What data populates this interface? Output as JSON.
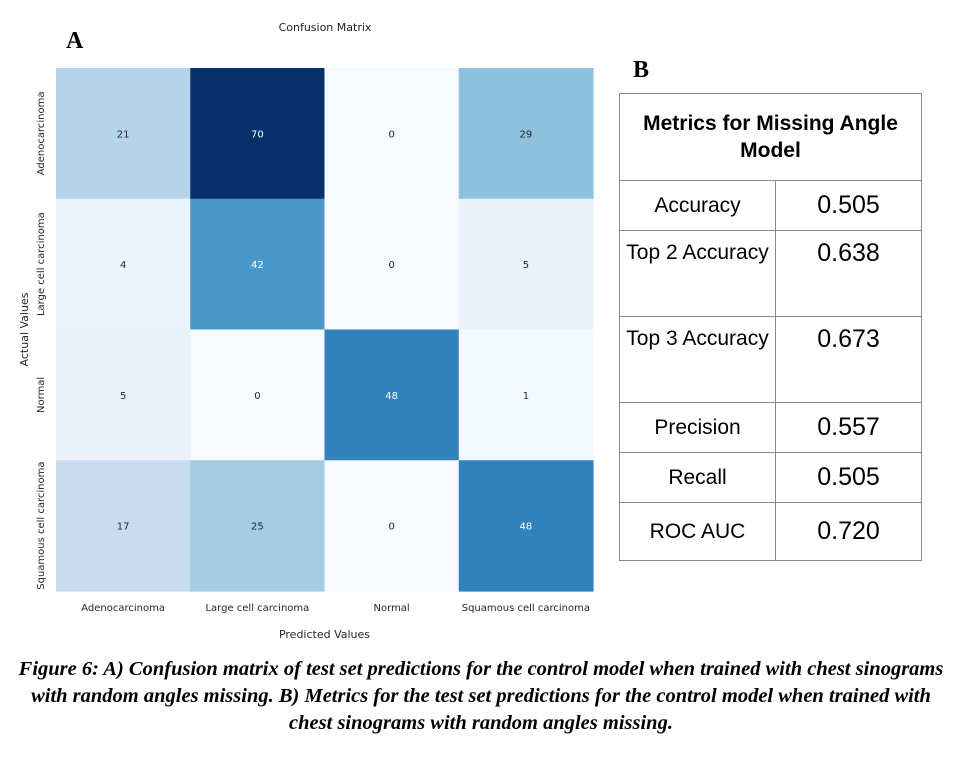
{
  "panel_a_label": "A",
  "panel_b_label": "B",
  "chart_data": {
    "type": "heatmap",
    "title": "Confusion Matrix",
    "xlabel": "Predicted Values",
    "ylabel": "Actual Values",
    "x_categories": [
      "Adenocarcinoma",
      "Large cell carcinoma",
      "Normal",
      "Squamous cell carcinoma"
    ],
    "y_categories": [
      "Adenocarcinoma",
      "Large cell carcinoma",
      "Normal",
      "Squamous cell carcinoma"
    ],
    "values": [
      [
        21,
        70,
        0,
        29
      ],
      [
        4,
        42,
        0,
        5
      ],
      [
        5,
        0,
        48,
        1
      ],
      [
        17,
        25,
        0,
        48
      ]
    ],
    "colormap": "Blues",
    "vmin": 0,
    "vmax": 70,
    "colorbar": false,
    "grid": false
  },
  "metrics_table": {
    "header": "Metrics for Missing Angle Model",
    "rows": [
      {
        "metric": "Accuracy",
        "value": "0.505"
      },
      {
        "metric": "Top 2 Accuracy",
        "value": "0.638"
      },
      {
        "metric": "Top 3 Accuracy",
        "value": "0.673"
      },
      {
        "metric": "Precision",
        "value": "0.557"
      },
      {
        "metric": "Recall",
        "value": "0.505"
      },
      {
        "metric": "ROC AUC",
        "value": "0.720"
      }
    ]
  },
  "caption": "Figure 6: A) Confusion matrix of test set predictions for the control model when trained with chest sinograms with random angles missing. B) Metrics for the test set predictions for the control model when trained with chest sinograms with random angles missing."
}
